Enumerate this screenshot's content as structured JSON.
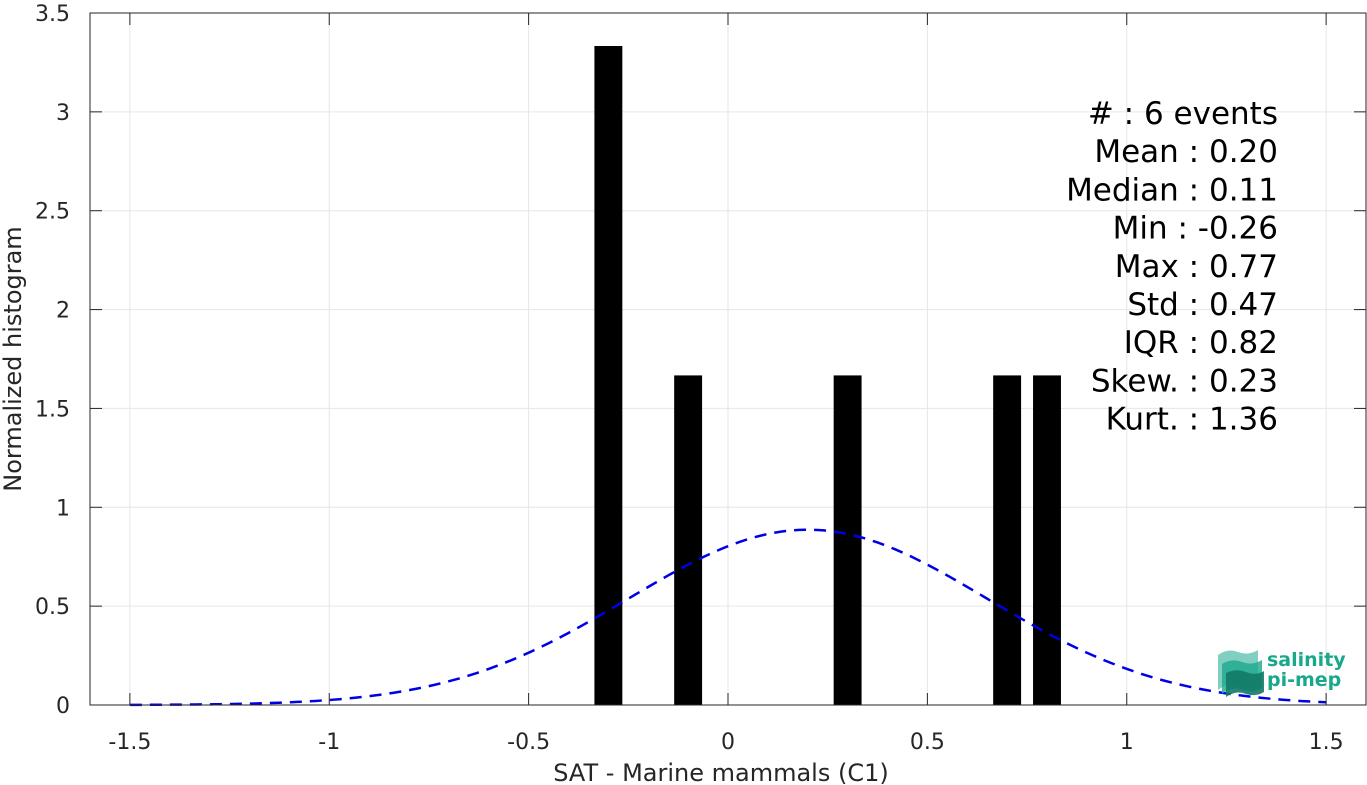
{
  "chart_data": {
    "type": "bar",
    "title": "",
    "xlabel": "SAT - Marine mammals (C1)",
    "ylabel": "Normalized histogram",
    "xlim": [
      -1.6,
      1.6
    ],
    "ylim": [
      0,
      3.5
    ],
    "x_ticks": [
      -1.5,
      -1,
      -0.5,
      0,
      0.5,
      1,
      1.5
    ],
    "x_tick_labels": [
      "-1.5",
      "-1",
      "-0.5",
      "0",
      "0.5",
      "1",
      "1.5"
    ],
    "y_ticks": [
      0,
      0.5,
      1,
      1.5,
      2,
      2.5,
      3,
      3.5
    ],
    "y_tick_labels": [
      "0",
      "0.5",
      "1",
      "1.5",
      "2",
      "2.5",
      "3",
      "3.5"
    ],
    "grid": true,
    "bar_width": 0.07,
    "bar_color": "#000000",
    "bars": [
      {
        "x": -0.3,
        "value": 3.333
      },
      {
        "x": -0.1,
        "value": 1.667
      },
      {
        "x": 0.3,
        "value": 1.667
      },
      {
        "x": 0.7,
        "value": 1.667
      },
      {
        "x": 0.8,
        "value": 1.667
      }
    ],
    "fit_curve": {
      "type": "normal",
      "style": "dashed",
      "color": "#0000e6",
      "mean": 0.2,
      "std": 0.45,
      "x_range": [
        -1.5,
        1.5
      ]
    },
    "stats_lines": [
      "#  : 6 events",
      "Mean : 0.20",
      "Median : 0.11",
      "Min : -0.26",
      "Max : 0.77",
      "Std : 0.47",
      "IQR : 0.82",
      "Skew. : 0.23",
      "Kurt. : 1.36"
    ]
  },
  "logo": {
    "line1": "salinity",
    "line2": "pi-mep",
    "color": "#1aa88c"
  }
}
